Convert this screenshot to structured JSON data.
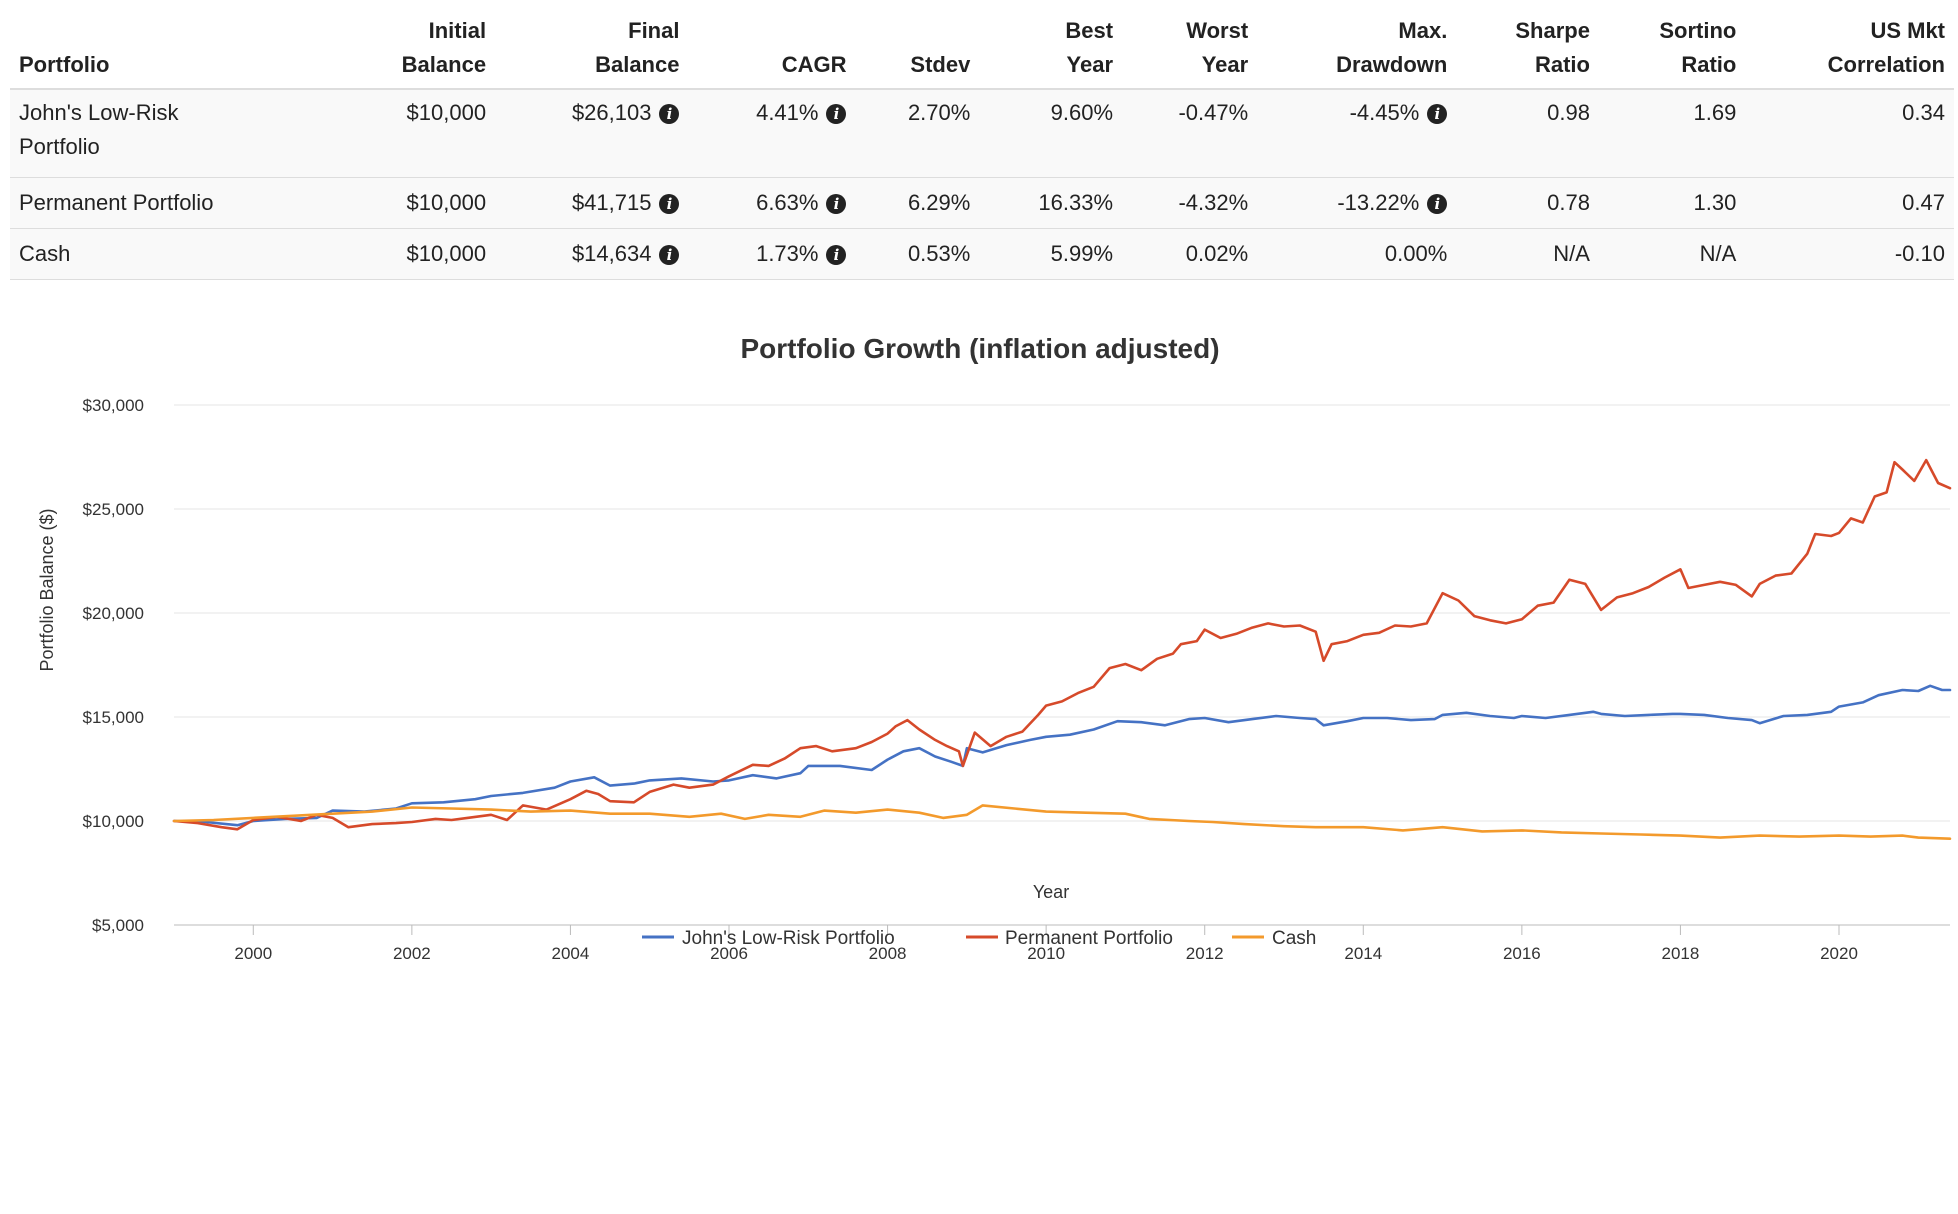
{
  "table": {
    "headers": [
      {
        "line1": "",
        "line2": "Portfolio",
        "align": "left"
      },
      {
        "line1": "Initial",
        "line2": "Balance",
        "align": "right"
      },
      {
        "line1": "Final",
        "line2": "Balance",
        "align": "right"
      },
      {
        "line1": "",
        "line2": "CAGR",
        "align": "right"
      },
      {
        "line1": "",
        "line2": "Stdev",
        "align": "right"
      },
      {
        "line1": "Best",
        "line2": "Year",
        "align": "right"
      },
      {
        "line1": "Worst",
        "line2": "Year",
        "align": "right"
      },
      {
        "line1": "Max.",
        "line2": "Drawdown",
        "align": "right"
      },
      {
        "line1": "Sharpe",
        "line2": "Ratio",
        "align": "right"
      },
      {
        "line1": "Sortino",
        "line2": "Ratio",
        "align": "right"
      },
      {
        "line1": "US Mkt",
        "line2": "Correlation",
        "align": "right"
      }
    ],
    "rows": [
      {
        "portfolio_line1": "John's Low-Risk",
        "portfolio_line2": "Portfolio",
        "initial_balance": "$10,000",
        "final_balance": "$26,103",
        "cagr": "4.41%",
        "stdev": "2.70%",
        "best_year": "9.60%",
        "worst_year": "-0.47%",
        "max_drawdown": "-4.45%",
        "sharpe": "0.98",
        "sortino": "1.69",
        "us_mkt_correlation": "0.34",
        "drawdown_info": true
      },
      {
        "portfolio_line1": "Permanent Portfolio",
        "portfolio_line2": "",
        "initial_balance": "$10,000",
        "final_balance": "$41,715",
        "cagr": "6.63%",
        "stdev": "6.29%",
        "best_year": "16.33%",
        "worst_year": "-4.32%",
        "max_drawdown": "-13.22%",
        "sharpe": "0.78",
        "sortino": "1.30",
        "us_mkt_correlation": "0.47",
        "drawdown_info": true
      },
      {
        "portfolio_line1": "Cash",
        "portfolio_line2": "",
        "initial_balance": "$10,000",
        "final_balance": "$14,634",
        "cagr": "1.73%",
        "stdev": "0.53%",
        "best_year": "5.99%",
        "worst_year": "0.02%",
        "max_drawdown": "0.00%",
        "sharpe": "N/A",
        "sortino": "N/A",
        "us_mkt_correlation": "-0.10",
        "drawdown_info": false
      }
    ],
    "info_icon": "info-circle-icon"
  },
  "chart_data": {
    "type": "line",
    "title": "Portfolio Growth (inflation adjusted)",
    "xlabel": "Year",
    "ylabel": "Portfolio Balance ($)",
    "xlim": [
      1999.0,
      2021.4
    ],
    "ylim": [
      5000,
      30000
    ],
    "x_ticks": [
      2000,
      2002,
      2004,
      2006,
      2008,
      2010,
      2012,
      2014,
      2016,
      2018,
      2020
    ],
    "y_ticks": [
      5000,
      10000,
      15000,
      20000,
      25000,
      30000
    ],
    "y_tick_labels": [
      "$5,000",
      "$10,000",
      "$15,000",
      "$20,000",
      "$25,000",
      "$30,000"
    ],
    "grid": "horizontal",
    "legend": "bottom-center",
    "series": [
      {
        "name": "John's Low-Risk Portfolio",
        "color": "#4572c4",
        "points": [
          [
            1999.0,
            10000
          ],
          [
            1999.4,
            9950
          ],
          [
            1999.8,
            9800
          ],
          [
            2000.0,
            10000
          ],
          [
            2000.4,
            10100
          ],
          [
            2000.8,
            10150
          ],
          [
            2001.0,
            10500
          ],
          [
            2001.4,
            10450
          ],
          [
            2001.8,
            10600
          ],
          [
            2002.0,
            10850
          ],
          [
            2002.4,
            10900
          ],
          [
            2002.8,
            11050
          ],
          [
            2003.0,
            11200
          ],
          [
            2003.4,
            11350
          ],
          [
            2003.8,
            11600
          ],
          [
            2004.0,
            11900
          ],
          [
            2004.3,
            12100
          ],
          [
            2004.5,
            11700
          ],
          [
            2004.8,
            11800
          ],
          [
            2005.0,
            11950
          ],
          [
            2005.4,
            12050
          ],
          [
            2005.8,
            11900
          ],
          [
            2006.0,
            11950
          ],
          [
            2006.3,
            12200
          ],
          [
            2006.6,
            12050
          ],
          [
            2006.9,
            12300
          ],
          [
            2007.0,
            12650
          ],
          [
            2007.4,
            12650
          ],
          [
            2007.8,
            12450
          ],
          [
            2008.0,
            12950
          ],
          [
            2008.2,
            13350
          ],
          [
            2008.4,
            13500
          ],
          [
            2008.6,
            13100
          ],
          [
            2008.8,
            12850
          ],
          [
            2008.95,
            12650
          ],
          [
            2009.0,
            13500
          ],
          [
            2009.2,
            13300
          ],
          [
            2009.5,
            13650
          ],
          [
            2009.8,
            13900
          ],
          [
            2010.0,
            14050
          ],
          [
            2010.3,
            14150
          ],
          [
            2010.6,
            14400
          ],
          [
            2010.9,
            14800
          ],
          [
            2011.2,
            14750
          ],
          [
            2011.5,
            14600
          ],
          [
            2011.8,
            14900
          ],
          [
            2012.0,
            14950
          ],
          [
            2012.3,
            14750
          ],
          [
            2012.6,
            14900
          ],
          [
            2012.9,
            15050
          ],
          [
            2013.2,
            14950
          ],
          [
            2013.4,
            14900
          ],
          [
            2013.5,
            14600
          ],
          [
            2013.8,
            14800
          ],
          [
            2014.0,
            14950
          ],
          [
            2014.3,
            14950
          ],
          [
            2014.6,
            14850
          ],
          [
            2014.9,
            14900
          ],
          [
            2015.0,
            15100
          ],
          [
            2015.3,
            15200
          ],
          [
            2015.6,
            15050
          ],
          [
            2015.9,
            14950
          ],
          [
            2016.0,
            15050
          ],
          [
            2016.3,
            14950
          ],
          [
            2016.6,
            15100
          ],
          [
            2016.9,
            15250
          ],
          [
            2017.0,
            15150
          ],
          [
            2017.3,
            15050
          ],
          [
            2017.6,
            15100
          ],
          [
            2017.9,
            15150
          ],
          [
            2018.0,
            15150
          ],
          [
            2018.3,
            15100
          ],
          [
            2018.6,
            14950
          ],
          [
            2018.9,
            14850
          ],
          [
            2019.0,
            14700
          ],
          [
            2019.3,
            15050
          ],
          [
            2019.6,
            15100
          ],
          [
            2019.9,
            15250
          ],
          [
            2020.0,
            15500
          ],
          [
            2020.3,
            15700
          ],
          [
            2020.5,
            16050
          ],
          [
            2020.8,
            16300
          ],
          [
            2021.0,
            16250
          ],
          [
            2021.15,
            16500
          ],
          [
            2021.3,
            16300
          ],
          [
            2021.4,
            16300
          ]
        ]
      },
      {
        "name": "Permanent Portfolio",
        "color": "#d64a2a",
        "points": [
          [
            1999.0,
            10000
          ],
          [
            1999.3,
            9900
          ],
          [
            1999.6,
            9700
          ],
          [
            1999.8,
            9600
          ],
          [
            2000.0,
            10050
          ],
          [
            2000.3,
            10200
          ],
          [
            2000.6,
            10000
          ],
          [
            2000.8,
            10300
          ],
          [
            2001.0,
            10150
          ],
          [
            2001.2,
            9700
          ],
          [
            2001.5,
            9850
          ],
          [
            2001.8,
            9900
          ],
          [
            2002.0,
            9950
          ],
          [
            2002.3,
            10100
          ],
          [
            2002.5,
            10050
          ],
          [
            2002.7,
            10150
          ],
          [
            2003.0,
            10300
          ],
          [
            2003.2,
            10050
          ],
          [
            2003.4,
            10750
          ],
          [
            2003.7,
            10550
          ],
          [
            2004.0,
            11050
          ],
          [
            2004.2,
            11450
          ],
          [
            2004.35,
            11300
          ],
          [
            2004.5,
            10950
          ],
          [
            2004.8,
            10900
          ],
          [
            2005.0,
            11400
          ],
          [
            2005.3,
            11750
          ],
          [
            2005.5,
            11600
          ],
          [
            2005.8,
            11750
          ],
          [
            2006.0,
            12150
          ],
          [
            2006.3,
            12700
          ],
          [
            2006.5,
            12650
          ],
          [
            2006.7,
            13000
          ],
          [
            2006.9,
            13500
          ],
          [
            2007.1,
            13600
          ],
          [
            2007.3,
            13350
          ],
          [
            2007.6,
            13500
          ],
          [
            2007.8,
            13800
          ],
          [
            2008.0,
            14200
          ],
          [
            2008.1,
            14550
          ],
          [
            2008.25,
            14850
          ],
          [
            2008.4,
            14400
          ],
          [
            2008.6,
            13900
          ],
          [
            2008.75,
            13600
          ],
          [
            2008.9,
            13350
          ],
          [
            2008.95,
            12650
          ],
          [
            2009.1,
            14250
          ],
          [
            2009.3,
            13600
          ],
          [
            2009.5,
            14050
          ],
          [
            2009.7,
            14300
          ],
          [
            2009.9,
            15100
          ],
          [
            2010.0,
            15550
          ],
          [
            2010.2,
            15750
          ],
          [
            2010.4,
            16150
          ],
          [
            2010.6,
            16450
          ],
          [
            2010.8,
            17350
          ],
          [
            2011.0,
            17550
          ],
          [
            2011.2,
            17250
          ],
          [
            2011.4,
            17800
          ],
          [
            2011.6,
            18050
          ],
          [
            2011.7,
            18500
          ],
          [
            2011.9,
            18650
          ],
          [
            2012.0,
            19200
          ],
          [
            2012.2,
            18800
          ],
          [
            2012.4,
            19000
          ],
          [
            2012.6,
            19300
          ],
          [
            2012.8,
            19500
          ],
          [
            2013.0,
            19350
          ],
          [
            2013.2,
            19400
          ],
          [
            2013.4,
            19100
          ],
          [
            2013.5,
            17700
          ],
          [
            2013.6,
            18500
          ],
          [
            2013.8,
            18650
          ],
          [
            2014.0,
            18950
          ],
          [
            2014.2,
            19050
          ],
          [
            2014.4,
            19400
          ],
          [
            2014.6,
            19350
          ],
          [
            2014.8,
            19500
          ],
          [
            2015.0,
            20950
          ],
          [
            2015.2,
            20600
          ],
          [
            2015.4,
            19850
          ],
          [
            2015.6,
            19650
          ],
          [
            2015.8,
            19500
          ],
          [
            2016.0,
            19700
          ],
          [
            2016.2,
            20350
          ],
          [
            2016.4,
            20500
          ],
          [
            2016.6,
            21600
          ],
          [
            2016.8,
            21400
          ],
          [
            2017.0,
            20150
          ],
          [
            2017.2,
            20750
          ],
          [
            2017.4,
            20950
          ],
          [
            2017.6,
            21250
          ],
          [
            2017.8,
            21700
          ],
          [
            2018.0,
            22100
          ],
          [
            2018.1,
            21200
          ],
          [
            2018.3,
            21350
          ],
          [
            2018.5,
            21500
          ],
          [
            2018.7,
            21350
          ],
          [
            2018.9,
            20800
          ],
          [
            2019.0,
            21400
          ],
          [
            2019.2,
            21800
          ],
          [
            2019.4,
            21900
          ],
          [
            2019.6,
            22850
          ],
          [
            2019.7,
            23800
          ],
          [
            2019.9,
            23700
          ],
          [
            2020.0,
            23850
          ],
          [
            2020.15,
            24550
          ],
          [
            2020.3,
            24350
          ],
          [
            2020.45,
            25600
          ],
          [
            2020.6,
            25800
          ],
          [
            2020.7,
            27250
          ],
          [
            2020.8,
            26900
          ],
          [
            2020.95,
            26350
          ],
          [
            2021.1,
            27350
          ],
          [
            2021.25,
            26250
          ],
          [
            2021.4,
            26000
          ]
        ]
      },
      {
        "name": "Cash",
        "color": "#f39a2c",
        "points": [
          [
            1999.0,
            10000
          ],
          [
            1999.5,
            10050
          ],
          [
            2000.0,
            10150
          ],
          [
            2000.5,
            10250
          ],
          [
            2001.0,
            10350
          ],
          [
            2001.5,
            10450
          ],
          [
            2002.0,
            10650
          ],
          [
            2002.5,
            10600
          ],
          [
            2003.0,
            10550
          ],
          [
            2003.5,
            10450
          ],
          [
            2004.0,
            10500
          ],
          [
            2004.5,
            10350
          ],
          [
            2005.0,
            10350
          ],
          [
            2005.5,
            10200
          ],
          [
            2005.9,
            10350
          ],
          [
            2006.2,
            10100
          ],
          [
            2006.5,
            10300
          ],
          [
            2006.9,
            10200
          ],
          [
            2007.2,
            10500
          ],
          [
            2007.6,
            10400
          ],
          [
            2008.0,
            10550
          ],
          [
            2008.4,
            10400
          ],
          [
            2008.7,
            10150
          ],
          [
            2009.0,
            10300
          ],
          [
            2009.2,
            10750
          ],
          [
            2009.6,
            10600
          ],
          [
            2010.0,
            10450
          ],
          [
            2010.5,
            10400
          ],
          [
            2011.0,
            10350
          ],
          [
            2011.3,
            10100
          ],
          [
            2011.8,
            10000
          ],
          [
            2012.1,
            9950
          ],
          [
            2012.5,
            9850
          ],
          [
            2013.0,
            9750
          ],
          [
            2013.4,
            9700
          ],
          [
            2014.0,
            9700
          ],
          [
            2014.5,
            9550
          ],
          [
            2015.0,
            9700
          ],
          [
            2015.5,
            9500
          ],
          [
            2016.0,
            9550
          ],
          [
            2016.5,
            9450
          ],
          [
            2017.0,
            9400
          ],
          [
            2017.5,
            9350
          ],
          [
            2018.0,
            9300
          ],
          [
            2018.5,
            9200
          ],
          [
            2019.0,
            9300
          ],
          [
            2019.5,
            9250
          ],
          [
            2020.0,
            9300
          ],
          [
            2020.4,
            9250
          ],
          [
            2020.8,
            9300
          ],
          [
            2021.0,
            9200
          ],
          [
            2021.4,
            9150
          ]
        ]
      }
    ]
  }
}
